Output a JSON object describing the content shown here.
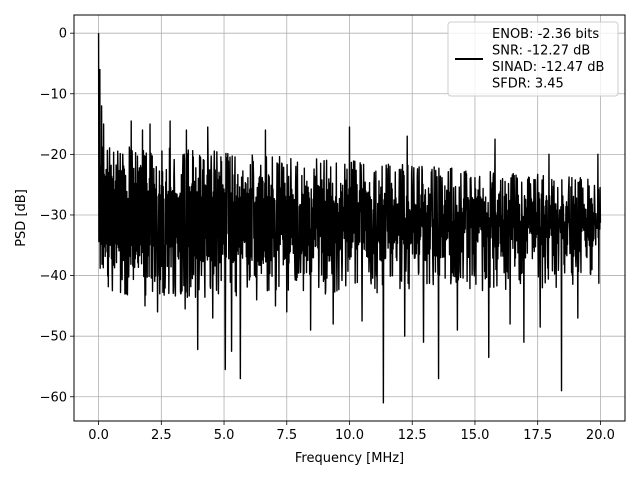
{
  "chart_data": {
    "type": "line",
    "title": "",
    "xlabel": "Frequency [MHz]",
    "ylabel": "PSD [dB]",
    "xlim": [
      -0.98,
      20.98
    ],
    "ylim": [
      -64.0,
      3.0
    ],
    "x_ticks": [
      0.0,
      2.5,
      5.0,
      7.5,
      10.0,
      12.5,
      15.0,
      17.5,
      20.0
    ],
    "x_tick_labels": [
      "0.0",
      "2.5",
      "5.0",
      "7.5",
      "10.0",
      "12.5",
      "15.0",
      "17.5",
      "20.0"
    ],
    "y_ticks": [
      0,
      -10,
      -20,
      -30,
      -40,
      -50,
      -60
    ],
    "y_tick_labels": [
      "0",
      "−10",
      "−20",
      "−30",
      "−40",
      "−50",
      "−60"
    ],
    "grid": true,
    "legend_position": "top-right",
    "line_color": "#000000",
    "series": [
      {
        "name": "ENOB: -2.36 bits\nSNR: -12.27 dB\nSINAD: -12.47 dB\nSFDR: 3.45",
        "x_start": 0.0,
        "x_end": 20.0,
        "noise_upper_db": [
          -20,
          -26
        ],
        "noise_lower_db": [
          -40,
          -38
        ],
        "peaks": [
          {
            "x": 0.0,
            "y": 0.0
          },
          {
            "x": 0.05,
            "y": -6.0
          },
          {
            "x": 0.12,
            "y": -12.0
          },
          {
            "x": 0.2,
            "y": -15.0
          },
          {
            "x": 1.3,
            "y": -14.5
          },
          {
            "x": 1.75,
            "y": -16.0
          },
          {
            "x": 2.05,
            "y": -15.0
          },
          {
            "x": 2.85,
            "y": -14.5
          },
          {
            "x": 3.5,
            "y": -16.0
          },
          {
            "x": 4.35,
            "y": -15.5
          },
          {
            "x": 6.65,
            "y": -16.0
          },
          {
            "x": 10.0,
            "y": -15.5
          },
          {
            "x": 12.3,
            "y": -17.0
          },
          {
            "x": 15.8,
            "y": -17.5
          },
          {
            "x": 17.95,
            "y": -20.0
          },
          {
            "x": 19.9,
            "y": -20.0
          }
        ],
        "dips": [
          {
            "x": 0.55,
            "y": -42.5
          },
          {
            "x": 1.1,
            "y": -43.0
          },
          {
            "x": 1.85,
            "y": -45.0
          },
          {
            "x": 2.35,
            "y": -46.0
          },
          {
            "x": 3.45,
            "y": -45.5
          },
          {
            "x": 3.95,
            "y": -52.2
          },
          {
            "x": 4.55,
            "y": -47.0
          },
          {
            "x": 5.05,
            "y": -55.5
          },
          {
            "x": 5.3,
            "y": -52.5
          },
          {
            "x": 5.65,
            "y": -57.0
          },
          {
            "x": 6.3,
            "y": -44.0
          },
          {
            "x": 7.05,
            "y": -45.0
          },
          {
            "x": 7.5,
            "y": -46.0
          },
          {
            "x": 8.45,
            "y": -49.0
          },
          {
            "x": 9.35,
            "y": -48.0
          },
          {
            "x": 10.0,
            "y": -50.5
          },
          {
            "x": 10.5,
            "y": -47.5
          },
          {
            "x": 11.35,
            "y": -61.0
          },
          {
            "x": 12.2,
            "y": -50.0
          },
          {
            "x": 12.95,
            "y": -51.0
          },
          {
            "x": 13.55,
            "y": -57.0
          },
          {
            "x": 14.3,
            "y": -49.0
          },
          {
            "x": 15.55,
            "y": -53.5
          },
          {
            "x": 16.4,
            "y": -48.0
          },
          {
            "x": 16.95,
            "y": -51.0
          },
          {
            "x": 17.6,
            "y": -48.5
          },
          {
            "x": 18.45,
            "y": -59.0
          },
          {
            "x": 19.1,
            "y": -47.0
          },
          {
            "x": 19.9,
            "y": -45.5
          }
        ]
      }
    ]
  }
}
